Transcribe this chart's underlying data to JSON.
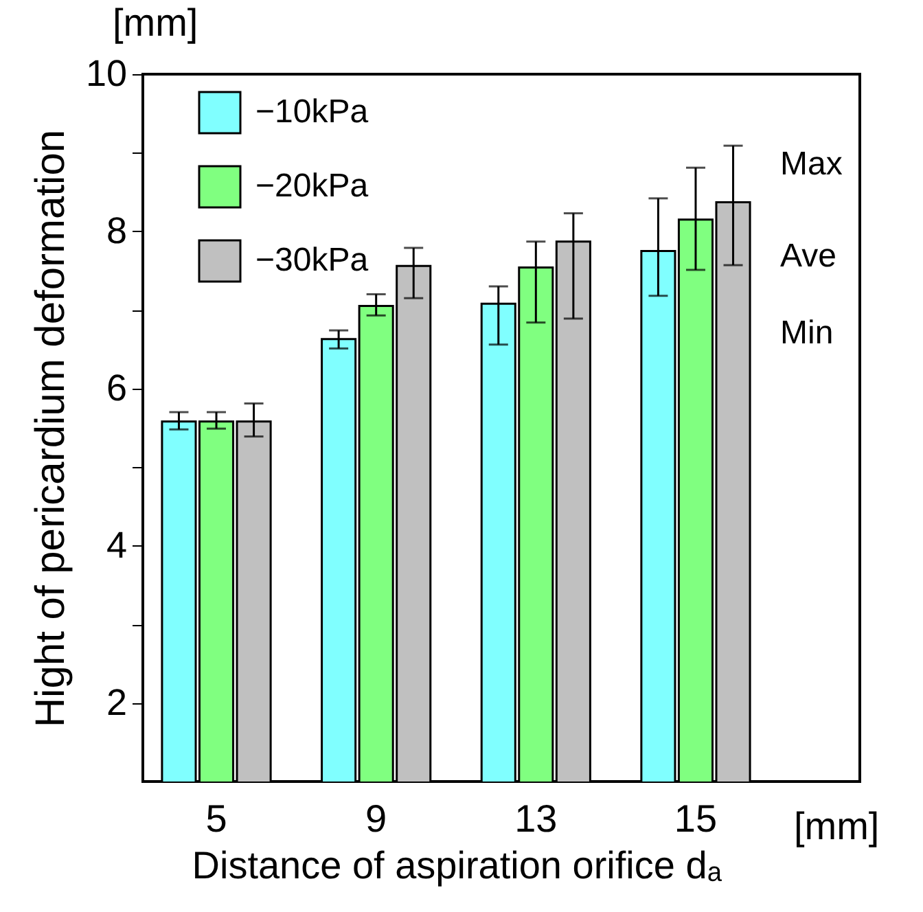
{
  "chart_data": {
    "type": "bar",
    "categories": [
      "5",
      "9",
      "13",
      "15"
    ],
    "xlabel": "Distance of aspiration orifice dₐ",
    "ylabel": "Hight of pericardium deformation",
    "ylim": [
      1,
      10
    ],
    "yticks": [
      2,
      {
        "value": 3,
        "label": null
      },
      4,
      {
        "value": 5,
        "label": null
      },
      6,
      {
        "value": 7,
        "label": null
      },
      8,
      {
        "value": 9,
        "label": null
      },
      10
    ],
    "series": [
      {
        "name": "−10kPa",
        "color": "#80ffff",
        "values": [
          5.58,
          6.63,
          7.08,
          7.75
        ],
        "errors": [
          [
            5.48,
            5.7
          ],
          [
            6.51,
            6.74
          ],
          [
            6.56,
            7.3
          ],
          [
            7.18,
            8.42
          ]
        ]
      },
      {
        "name": "−20kPa",
        "color": "#80ff80",
        "values": [
          5.58,
          7.05,
          7.54,
          8.15
        ],
        "errors": [
          [
            5.49,
            5.7
          ],
          [
            6.93,
            7.2
          ],
          [
            6.84,
            7.87
          ],
          [
            7.51,
            8.81
          ]
        ]
      },
      {
        "name": "−30kPa",
        "color": "#c0c0c0",
        "values": [
          5.58,
          7.56,
          7.87,
          8.37
        ],
        "errors": [
          [
            5.39,
            5.81
          ],
          [
            7.15,
            7.79
          ],
          [
            6.89,
            8.23
          ],
          [
            7.57,
            9.09
          ]
        ]
      }
    ],
    "annotations": [
      "[mm]",
      "[mm]",
      "Max",
      "Ave",
      "Min"
    ],
    "legend": "top left",
    "grid": false
  }
}
